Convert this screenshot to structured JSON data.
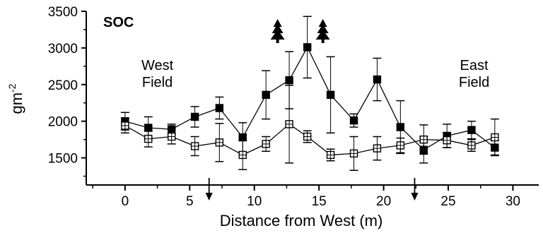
{
  "chart_data": {
    "type": "line",
    "panel_label": "SOC",
    "xlabel": "Distance from West (m)",
    "ylabel": "gm",
    "ylabel_sup": "-2",
    "xlim": [
      -3,
      32
    ],
    "ylim": [
      1130,
      3500
    ],
    "xticks": [
      0,
      5,
      10,
      15,
      20,
      25,
      30
    ],
    "yticks": [
      1500,
      2000,
      2500,
      3000,
      3500
    ],
    "grid": false,
    "annotations": [
      {
        "line1": "West",
        "line2": "Field",
        "x": 2.5,
        "y": 2700
      },
      {
        "line1": "East",
        "line2": "Field",
        "x": 27,
        "y": 2700
      }
    ],
    "tree_markers_x": [
      11.8,
      15.3
    ],
    "arrow_markers_x": [
      6.5,
      22.4
    ],
    "series": [
      {
        "marker": "filled-square",
        "x": [
          0,
          1.8,
          3.6,
          5.4,
          7.3,
          9.1,
          10.9,
          12.7,
          14.1,
          15.9,
          17.7,
          19.5,
          21.3,
          23.1,
          24.9,
          26.8,
          28.6
        ],
        "y": [
          2000,
          1910,
          1890,
          2060,
          2180,
          1780,
          2360,
          2560,
          3010,
          2360,
          2010,
          2570,
          1920,
          1610,
          1800,
          1880,
          1640
        ],
        "err": [
          120,
          150,
          70,
          140,
          150,
          200,
          330,
          390,
          420,
          520,
          90,
          290,
          360,
          180,
          160,
          120,
          100
        ]
      },
      {
        "marker": "open-square",
        "x": [
          0,
          1.8,
          3.6,
          5.4,
          7.3,
          9.1,
          10.9,
          12.7,
          14.1,
          15.9,
          17.7,
          19.5,
          21.3,
          23.1,
          24.9,
          26.8,
          28.6
        ],
        "y": [
          1940,
          1760,
          1790,
          1660,
          1710,
          1540,
          1690,
          1960,
          1790,
          1540,
          1560,
          1630,
          1670,
          1750,
          1740,
          1670,
          1780
        ],
        "err": [
          100,
          110,
          100,
          130,
          260,
          200,
          100,
          530,
          80,
          80,
          230,
          160,
          100,
          200,
          100,
          80,
          250
        ]
      }
    ]
  }
}
